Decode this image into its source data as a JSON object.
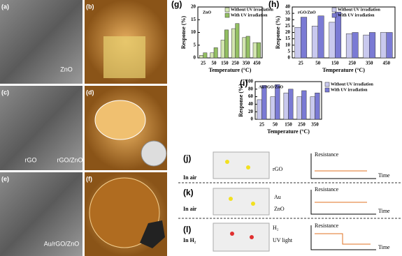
{
  "panels": [
    {
      "label": "(a)",
      "caption": "ZnO"
    },
    {
      "label": "(b)"
    },
    {
      "label": "(c)",
      "caption": "rGO/ZnO",
      "note": "rGO"
    },
    {
      "label": "(d)"
    },
    {
      "label": "(e)",
      "caption": "Au/rGO/ZnO"
    },
    {
      "label": "(f)"
    }
  ],
  "chart_data": [
    {
      "type": "bar",
      "label": "(g)",
      "title": "ZnO",
      "x_label": "Temperature (°C)",
      "y_label": "Response (%)",
      "categories": [
        "25",
        "50",
        "150",
        "250",
        "350",
        "450"
      ],
      "series": [
        {
          "name": "Without UV irradiation",
          "color": "#d3e6b0",
          "values": [
            1,
            2,
            7,
            11.5,
            8,
            6
          ]
        },
        {
          "name": "With UV irradiation",
          "color": "#93bf62",
          "values": [
            2,
            4,
            11,
            13.5,
            8.5,
            6
          ]
        }
      ],
      "ylim": [
        0,
        20
      ],
      "yticks": [
        0,
        5,
        10,
        15,
        20
      ]
    },
    {
      "type": "bar",
      "label": "(h)",
      "title": "rGO/ZnO",
      "x_label": "Temperature (°C)",
      "y_label": "Response (%)",
      "categories": [
        "25",
        "50",
        "150",
        "250",
        "350",
        "450"
      ],
      "series": [
        {
          "name": "Without UV irradiation",
          "color": "#c9c9ee",
          "values": [
            24,
            25,
            28,
            19,
            18,
            20
          ]
        },
        {
          "name": "With UV irradiation",
          "color": "#7a7ad4",
          "values": [
            32,
            33,
            36,
            20,
            20,
            20
          ]
        }
      ],
      "ylim": [
        0,
        40
      ],
      "yticks": [
        0,
        5,
        10,
        15,
        20,
        25,
        30,
        35,
        40
      ]
    },
    {
      "type": "bar",
      "label": "(i)",
      "title": "Au/rGO/ZnO",
      "x_label": "Temperature (°C)",
      "y_label": "Response (%)",
      "categories": [
        "25",
        "50",
        "150",
        "250",
        "350"
      ],
      "series": [
        {
          "name": "Without UV irradiation",
          "color": "#c9c9ee",
          "values": [
            52,
            60,
            70,
            60,
            60
          ]
        },
        {
          "name": "With UV irradiation",
          "color": "#7a7ad4",
          "values": [
            90,
            92,
            80,
            76,
            70
          ]
        }
      ],
      "ylim": [
        0,
        100
      ],
      "yticks": [
        0,
        20,
        40,
        60,
        80,
        100
      ]
    }
  ],
  "schematic": [
    {
      "label": "(j)",
      "condition": "In air",
      "annotations": [
        "rGO"
      ],
      "y_label": "Resistance",
      "x_label": "Time"
    },
    {
      "label": "(k)",
      "condition": "In air",
      "annotations": [
        "Au",
        "ZnO"
      ],
      "y_label": "Resistance",
      "x_label": "Time"
    },
    {
      "label": "(l)",
      "condition": "In H₂",
      "annotations": [
        "H₂",
        "UV light"
      ],
      "y_label": "Resistance",
      "x_label": "Time"
    }
  ]
}
